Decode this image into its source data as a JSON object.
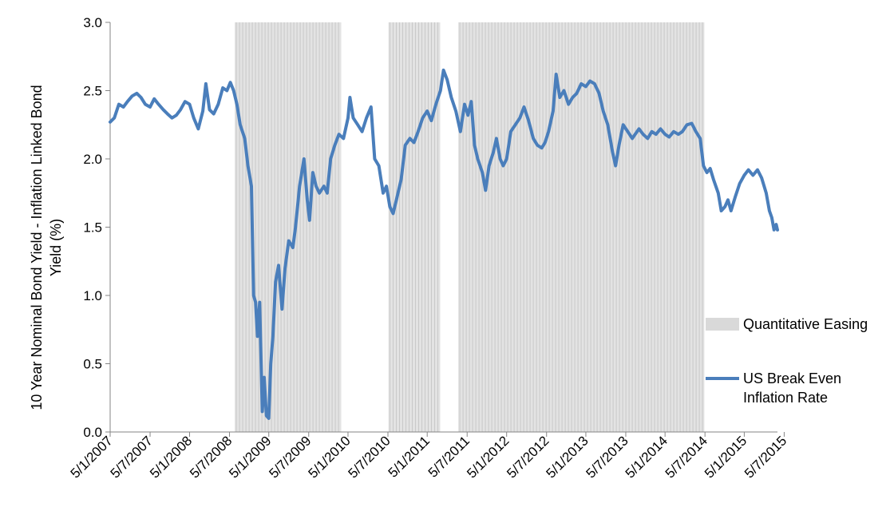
{
  "chart_data": {
    "type": "line",
    "title": "",
    "ylabel_lines": [
      "10 Year Nominal Bond Yield - Inflation Linked Bond",
      "Yield (%)"
    ],
    "xlabel": "",
    "ylim": [
      0,
      3
    ],
    "yticks": [
      0.0,
      0.5,
      1.0,
      1.5,
      2.0,
      2.5,
      3.0
    ],
    "ytick_labels": [
      "0.0",
      "0.5",
      "1.0",
      "1.5",
      "2.0",
      "2.5",
      "3.0"
    ],
    "xlim": [
      "2007-05-01",
      "2015-10-01"
    ],
    "xticks": [
      "2007-05-01",
      "2007-11-01",
      "2008-05-01",
      "2008-11-01",
      "2009-05-01",
      "2009-11-01",
      "2010-05-01",
      "2010-11-01",
      "2011-05-01",
      "2011-11-01",
      "2012-05-01",
      "2012-11-01",
      "2013-05-01",
      "2013-11-01",
      "2014-05-01",
      "2014-11-01",
      "2015-05-01",
      "2015-11-01"
    ],
    "xtick_labels": [
      "5/1/2007",
      "5/7/2007",
      "5/1/2008",
      "5/7/2008",
      "5/1/2009",
      "5/7/2009",
      "5/1/2010",
      "5/7/2010",
      "5/1/2011",
      "5/7/2011",
      "5/1/2012",
      "5/7/2012",
      "5/1/2013",
      "5/7/2013",
      "5/1/2014",
      "5/7/2014",
      "5/1/2015",
      "5/7/2015"
    ],
    "grid": "none",
    "legend": {
      "placement": "right",
      "entries": [
        {
          "label": "Quantitative Easing",
          "kind": "patch",
          "color": "#d9d9d9"
        },
        {
          "label_lines": [
            "US Break Even",
            "Inflation Rate"
          ],
          "kind": "line",
          "color": "#4a7ebb"
        }
      ]
    },
    "shaded_regions": [
      {
        "label": "Quantitative Easing",
        "start": "2008-11-25",
        "end": "2010-03-31"
      },
      {
        "label": "Quantitative Easing",
        "start": "2010-11-03",
        "end": "2011-06-30"
      },
      {
        "label": "Quantitative Easing",
        "start": "2011-09-21",
        "end": "2014-10-29"
      }
    ],
    "series": [
      {
        "name": "US Break Even Inflation Rate",
        "color": "#4a7ebb",
        "points": [
          [
            "2007-05-01",
            2.27
          ],
          [
            "2007-05-20",
            2.3
          ],
          [
            "2007-06-10",
            2.4
          ],
          [
            "2007-07-01",
            2.38
          ],
          [
            "2007-07-20",
            2.42
          ],
          [
            "2007-08-10",
            2.46
          ],
          [
            "2007-09-01",
            2.48
          ],
          [
            "2007-09-20",
            2.45
          ],
          [
            "2007-10-10",
            2.4
          ],
          [
            "2007-11-01",
            2.38
          ],
          [
            "2007-11-20",
            2.44
          ],
          [
            "2007-12-10",
            2.4
          ],
          [
            "2008-01-01",
            2.36
          ],
          [
            "2008-01-20",
            2.33
          ],
          [
            "2008-02-10",
            2.3
          ],
          [
            "2008-03-01",
            2.32
          ],
          [
            "2008-03-20",
            2.36
          ],
          [
            "2008-04-10",
            2.42
          ],
          [
            "2008-05-01",
            2.4
          ],
          [
            "2008-05-20",
            2.3
          ],
          [
            "2008-06-10",
            2.22
          ],
          [
            "2008-07-01",
            2.35
          ],
          [
            "2008-07-15",
            2.55
          ],
          [
            "2008-08-01",
            2.36
          ],
          [
            "2008-08-20",
            2.33
          ],
          [
            "2008-09-10",
            2.4
          ],
          [
            "2008-10-01",
            2.52
          ],
          [
            "2008-10-20",
            2.5
          ],
          [
            "2008-11-05",
            2.56
          ],
          [
            "2008-11-20",
            2.5
          ],
          [
            "2008-12-05",
            2.4
          ],
          [
            "2008-12-20",
            2.25
          ],
          [
            "2009-01-10",
            2.15
          ],
          [
            "2009-01-25",
            1.95
          ],
          [
            "2009-02-10",
            1.8
          ],
          [
            "2009-02-20",
            1.0
          ],
          [
            "2009-03-01",
            0.95
          ],
          [
            "2009-03-10",
            0.7
          ],
          [
            "2009-03-20",
            0.95
          ],
          [
            "2009-04-01",
            0.15
          ],
          [
            "2009-04-10",
            0.4
          ],
          [
            "2009-04-20",
            0.12
          ],
          [
            "2009-05-01",
            0.1
          ],
          [
            "2009-05-10",
            0.5
          ],
          [
            "2009-05-20",
            0.7
          ],
          [
            "2009-06-01",
            1.1
          ],
          [
            "2009-06-15",
            1.22
          ],
          [
            "2009-07-01",
            0.9
          ],
          [
            "2009-07-15",
            1.2
          ],
          [
            "2009-08-01",
            1.4
          ],
          [
            "2009-08-20",
            1.35
          ],
          [
            "2009-09-01",
            1.5
          ],
          [
            "2009-09-20",
            1.8
          ],
          [
            "2009-10-10",
            2.0
          ],
          [
            "2009-10-25",
            1.7
          ],
          [
            "2009-11-05",
            1.55
          ],
          [
            "2009-11-20",
            1.9
          ],
          [
            "2009-12-05",
            1.8
          ],
          [
            "2009-12-20",
            1.75
          ],
          [
            "2010-01-10",
            1.8
          ],
          [
            "2010-01-25",
            1.75
          ],
          [
            "2010-02-10",
            2.0
          ],
          [
            "2010-03-01",
            2.1
          ],
          [
            "2010-03-20",
            2.18
          ],
          [
            "2010-04-10",
            2.15
          ],
          [
            "2010-05-01",
            2.3
          ],
          [
            "2010-05-10",
            2.45
          ],
          [
            "2010-05-25",
            2.3
          ],
          [
            "2010-06-15",
            2.25
          ],
          [
            "2010-07-05",
            2.2
          ],
          [
            "2010-07-25",
            2.3
          ],
          [
            "2010-08-15",
            2.38
          ],
          [
            "2010-09-01",
            2.0
          ],
          [
            "2010-09-20",
            1.95
          ],
          [
            "2010-10-10",
            1.75
          ],
          [
            "2010-10-25",
            1.8
          ],
          [
            "2010-11-10",
            1.65
          ],
          [
            "2010-11-25",
            1.6
          ],
          [
            "2010-12-10",
            1.7
          ],
          [
            "2011-01-01",
            1.85
          ],
          [
            "2011-01-20",
            2.1
          ],
          [
            "2011-02-10",
            2.15
          ],
          [
            "2011-03-01",
            2.12
          ],
          [
            "2011-03-20",
            2.2
          ],
          [
            "2011-04-10",
            2.3
          ],
          [
            "2011-05-01",
            2.35
          ],
          [
            "2011-05-20",
            2.28
          ],
          [
            "2011-06-10",
            2.4
          ],
          [
            "2011-07-01",
            2.5
          ],
          [
            "2011-07-15",
            2.65
          ],
          [
            "2011-08-01",
            2.58
          ],
          [
            "2011-08-20",
            2.45
          ],
          [
            "2011-09-10",
            2.35
          ],
          [
            "2011-10-01",
            2.2
          ],
          [
            "2011-10-20",
            2.4
          ],
          [
            "2011-11-05",
            2.32
          ],
          [
            "2011-11-20",
            2.42
          ],
          [
            "2011-12-05",
            2.1
          ],
          [
            "2011-12-20",
            2.0
          ],
          [
            "2012-01-10",
            1.9
          ],
          [
            "2012-01-25",
            1.77
          ],
          [
            "2012-02-10",
            1.95
          ],
          [
            "2012-03-01",
            2.05
          ],
          [
            "2012-03-15",
            2.15
          ],
          [
            "2012-04-01",
            2.0
          ],
          [
            "2012-04-15",
            1.95
          ],
          [
            "2012-05-01",
            2.0
          ],
          [
            "2012-05-20",
            2.2
          ],
          [
            "2012-06-10",
            2.25
          ],
          [
            "2012-07-01",
            2.3
          ],
          [
            "2012-07-20",
            2.38
          ],
          [
            "2012-08-10",
            2.28
          ],
          [
            "2012-09-01",
            2.15
          ],
          [
            "2012-09-20",
            2.1
          ],
          [
            "2012-10-10",
            2.08
          ],
          [
            "2012-10-25",
            2.12
          ],
          [
            "2012-11-10",
            2.2
          ],
          [
            "2012-12-01",
            2.35
          ],
          [
            "2012-12-15",
            2.62
          ],
          [
            "2013-01-01",
            2.45
          ],
          [
            "2013-01-20",
            2.5
          ],
          [
            "2013-02-10",
            2.4
          ],
          [
            "2013-03-01",
            2.45
          ],
          [
            "2013-03-20",
            2.48
          ],
          [
            "2013-04-10",
            2.55
          ],
          [
            "2013-05-01",
            2.53
          ],
          [
            "2013-05-20",
            2.57
          ],
          [
            "2013-06-10",
            2.55
          ],
          [
            "2013-07-01",
            2.48
          ],
          [
            "2013-07-20",
            2.35
          ],
          [
            "2013-08-10",
            2.25
          ],
          [
            "2013-09-01",
            2.05
          ],
          [
            "2013-09-15",
            1.95
          ],
          [
            "2013-10-01",
            2.1
          ],
          [
            "2013-10-20",
            2.25
          ],
          [
            "2013-11-10",
            2.2
          ],
          [
            "2013-12-01",
            2.15
          ],
          [
            "2014-01-01",
            2.22
          ],
          [
            "2014-01-20",
            2.18
          ],
          [
            "2014-02-10",
            2.15
          ],
          [
            "2014-03-01",
            2.2
          ],
          [
            "2014-03-20",
            2.18
          ],
          [
            "2014-04-10",
            2.22
          ],
          [
            "2014-05-01",
            2.18
          ],
          [
            "2014-05-20",
            2.16
          ],
          [
            "2014-06-10",
            2.2
          ],
          [
            "2014-07-01",
            2.18
          ],
          [
            "2014-07-20",
            2.2
          ],
          [
            "2014-08-10",
            2.25
          ],
          [
            "2014-09-01",
            2.26
          ],
          [
            "2014-09-20",
            2.2
          ],
          [
            "2014-10-10",
            2.15
          ],
          [
            "2014-10-25",
            1.95
          ],
          [
            "2014-11-10",
            1.9
          ],
          [
            "2014-11-25",
            1.93
          ],
          [
            "2014-12-10",
            1.85
          ],
          [
            "2015-01-01",
            1.75
          ],
          [
            "2015-01-15",
            1.62
          ],
          [
            "2015-02-01",
            1.65
          ],
          [
            "2015-02-15",
            1.7
          ],
          [
            "2015-03-01",
            1.62
          ],
          [
            "2015-03-20",
            1.72
          ],
          [
            "2015-04-10",
            1.82
          ],
          [
            "2015-05-01",
            1.88
          ],
          [
            "2015-05-20",
            1.92
          ],
          [
            "2015-06-10",
            1.88
          ],
          [
            "2015-07-01",
            1.92
          ],
          [
            "2015-07-20",
            1.86
          ],
          [
            "2015-08-10",
            1.75
          ],
          [
            "2015-08-25",
            1.62
          ],
          [
            "2015-09-05",
            1.57
          ],
          [
            "2015-09-15",
            1.48
          ],
          [
            "2015-09-25",
            1.52
          ],
          [
            "2015-10-01",
            1.48
          ]
        ]
      }
    ]
  }
}
